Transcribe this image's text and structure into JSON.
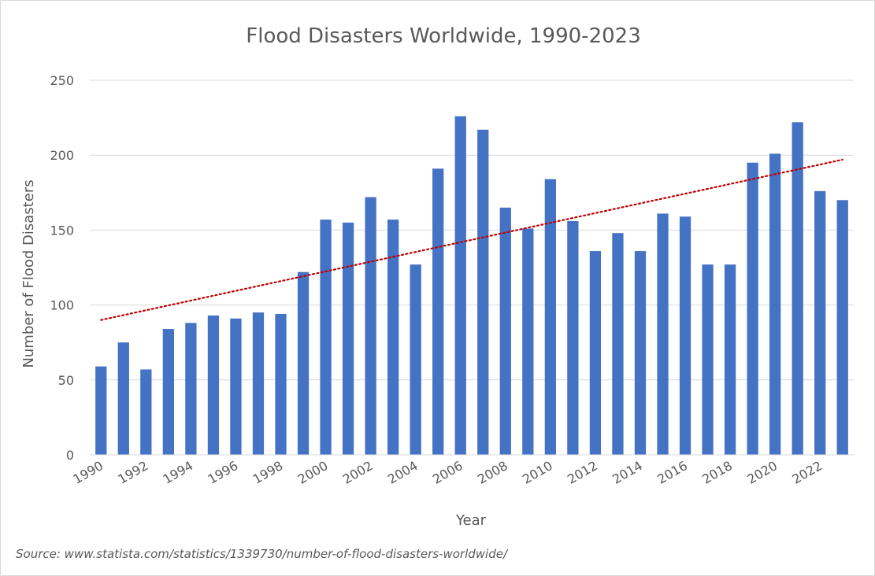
{
  "chart_data": {
    "type": "bar",
    "title": "Flood Disasters Worldwide, 1990-2023",
    "xlabel": "Year",
    "ylabel": "Number of Flood Disasters",
    "ylim": [
      0,
      250
    ],
    "y_ticks": [
      0,
      50,
      100,
      150,
      200,
      250
    ],
    "x_tick_labels": [
      "1990",
      "1992",
      "1994",
      "1996",
      "1998",
      "2000",
      "2002",
      "2004",
      "2006",
      "2008",
      "2010",
      "2012",
      "2014",
      "2016",
      "2018",
      "2020",
      "2022"
    ],
    "categories": [
      "1990",
      "1991",
      "1992",
      "1993",
      "1994",
      "1995",
      "1996",
      "1997",
      "1998",
      "1999",
      "2000",
      "2001",
      "2002",
      "2003",
      "2004",
      "2005",
      "2006",
      "2007",
      "2008",
      "2009",
      "2010",
      "2011",
      "2012",
      "2013",
      "2014",
      "2015",
      "2016",
      "2017",
      "2018",
      "2019",
      "2020",
      "2021",
      "2022",
      "2023"
    ],
    "values": [
      59,
      75,
      57,
      84,
      88,
      93,
      91,
      95,
      94,
      122,
      157,
      155,
      172,
      157,
      127,
      191,
      226,
      217,
      165,
      151,
      184,
      156,
      136,
      148,
      136,
      161,
      159,
      127,
      127,
      195,
      201,
      222,
      176,
      170
    ],
    "bar_color": "#4472c4",
    "gridlines": true,
    "legend": "none",
    "trendline": {
      "type": "linear",
      "style": "dotted",
      "color": "#c00000",
      "start": [
        1990,
        90
      ],
      "end": [
        2023,
        197
      ]
    }
  },
  "source_note": "Source: www.statista.com/statistics/1339730/number-of-flood-disasters-worldwide/"
}
